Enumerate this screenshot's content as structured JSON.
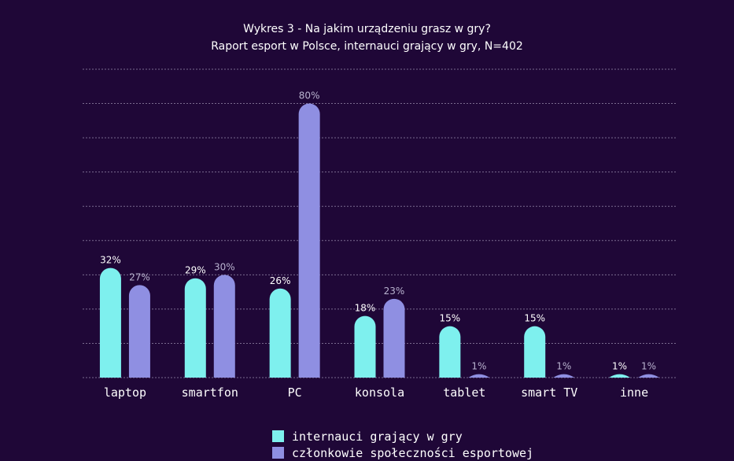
{
  "chart_data": {
    "type": "bar",
    "title": "Wykres 3 - Na jakim urządzeniu grasz w gry?",
    "subtitle": "Raport esport w Polsce, internauci grający w gry, N=402",
    "categories": [
      "laptop",
      "smartfon",
      "PC",
      "konsola",
      "tablet",
      "smart TV",
      "inne"
    ],
    "series": [
      {
        "name": "internauci grający w gry",
        "values": [
          32,
          29,
          26,
          18,
          15,
          15,
          1
        ],
        "labels": [
          "32%",
          "29%",
          "26%",
          "18%",
          "15%",
          "15%",
          "1%"
        ],
        "color": "#7ef0ee"
      },
      {
        "name": "członkowie społeczności esportowej",
        "values": [
          27,
          30,
          80,
          23,
          1,
          1,
          1
        ],
        "labels": [
          "27%",
          "30%",
          "80%",
          "23%",
          "1%",
          "1%",
          "1%"
        ],
        "color": "#8f8fe2"
      }
    ],
    "ylim": [
      0,
      90
    ],
    "grid": true,
    "legend_position": "bottom"
  },
  "colors": {
    "background": "#1f0737",
    "grid": "#7a6b8f",
    "label_series1": "#ffffff",
    "label_series2": "#b9b3cf"
  }
}
